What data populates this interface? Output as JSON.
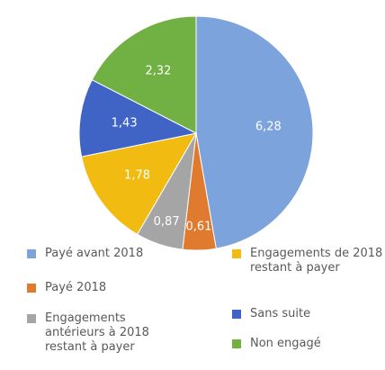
{
  "chart_data": {
    "type": "pie",
    "categories": [
      "Payé avant 2018",
      "Payé 2018",
      "Engagements antérieurs à 2018 restant à payer",
      "Engagements de 2018 restant à payer",
      "Sans suite",
      "Non engagé"
    ],
    "values": [
      6.28,
      0.61,
      0.87,
      1.78,
      1.43,
      2.32
    ],
    "value_labels": [
      "6,28",
      "0,61",
      "0,87",
      "1,78",
      "1,43",
      "2,32"
    ],
    "colors": [
      "#7ca3dc",
      "#e07a2e",
      "#a5a5a5",
      "#f2bb12",
      "#4064c6",
      "#71b043"
    ]
  }
}
